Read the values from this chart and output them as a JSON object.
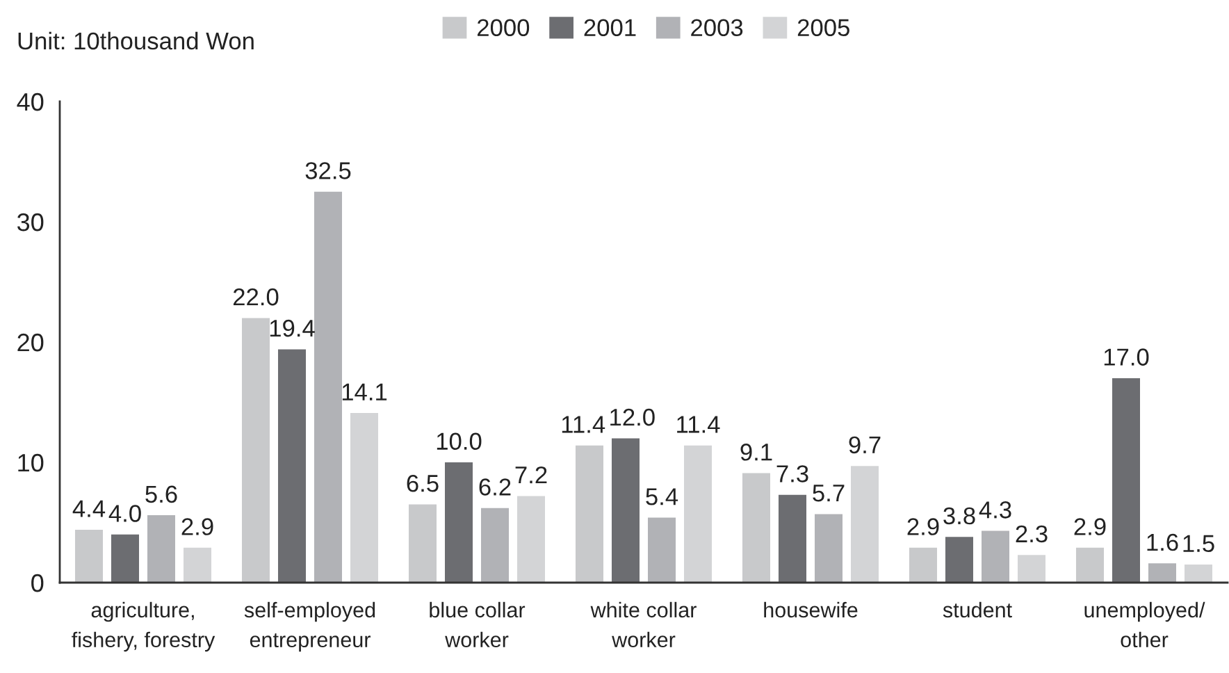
{
  "chart_data": {
    "type": "bar",
    "ylabel": "Unit: 10thousand Won",
    "categories": [
      "agriculture,\nfishery, forestry",
      "self-employed\nentrepreneur",
      "blue collar\nworker",
      "white collar\nworker",
      "housewife",
      "student",
      "unemployed/\nother"
    ],
    "series": [
      {
        "name": "2000",
        "color": "#c8c9cb",
        "values": [
          4.4,
          22.0,
          6.5,
          11.4,
          9.1,
          2.9,
          2.9
        ],
        "value_labels": [
          "4.4",
          "22.0",
          "6.5",
          "11.4",
          "9.1",
          "2.9",
          "2.9"
        ]
      },
      {
        "name": "2001",
        "color": "#6c6d71",
        "values": [
          4.0,
          19.4,
          10.0,
          12.0,
          7.3,
          3.8,
          17.0
        ],
        "value_labels": [
          "4.0",
          "19.4",
          "10.0",
          "12.0",
          "7.3",
          "3.8",
          "17.0"
        ]
      },
      {
        "name": "2003",
        "color": "#b1b2b6",
        "values": [
          5.6,
          32.5,
          6.2,
          5.4,
          5.7,
          4.3,
          1.6
        ],
        "value_labels": [
          "5.6",
          "32.5",
          "6.2",
          "5.4",
          "5.7",
          "4.3",
          "1.6"
        ]
      },
      {
        "name": "2005",
        "color": "#d3d4d6",
        "values": [
          2.9,
          14.1,
          7.2,
          11.4,
          9.7,
          2.3,
          1.5
        ],
        "value_labels": [
          "2.9",
          "14.1",
          "7.2",
          "11.4",
          "9.7",
          "2.3",
          "1.5"
        ]
      }
    ],
    "ylim": [
      0,
      40
    ],
    "yticks": [
      0,
      10,
      20,
      30,
      40
    ],
    "legend": "top",
    "grid": false
  }
}
